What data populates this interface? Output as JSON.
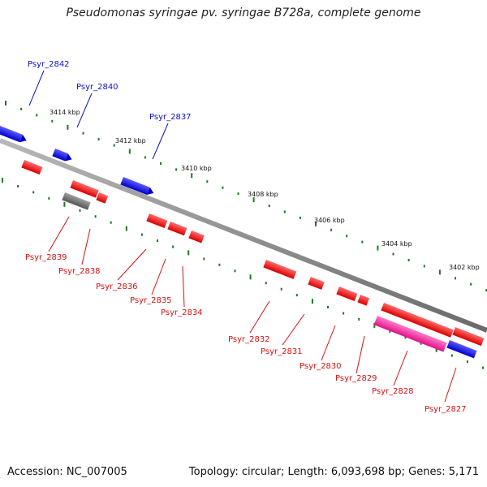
{
  "title": "Pseudomonas syringae pv. syringae B728a, complete genome",
  "footer": {
    "accession": "Accession: NC_007005",
    "stats": "Topology: circular; Length: 6,093,698 bp; Genes: 5,171"
  },
  "kbp_labels": [
    "3414 kbp",
    "3412 kbp",
    "3410 kbp",
    "3408 kbp",
    "3406 kbp",
    "3404 kbp",
    "3402 kbp"
  ],
  "forward_genes": [
    "Psyr_2842",
    "Psyr_2840",
    "Psyr_2837"
  ],
  "reverse_genes": [
    "Psyr_2839",
    "Psyr_2838",
    "Psyr_2836",
    "Psyr_2835",
    "Psyr_2834",
    "Psyr_2832",
    "Psyr_2831",
    "Psyr_2830",
    "Psyr_2829",
    "Psyr_2828",
    "Psyr_2827"
  ],
  "colors": {
    "forward_label": "#1010c8",
    "reverse_label": "#d81010",
    "cds_forward": "#1515e0",
    "cds_reverse": "#ee1111",
    "pseudo": "#6e6e6e",
    "rna": "#ff2aa0",
    "tick": "#1a7a1a",
    "backbone": "#8a8a8a"
  }
}
